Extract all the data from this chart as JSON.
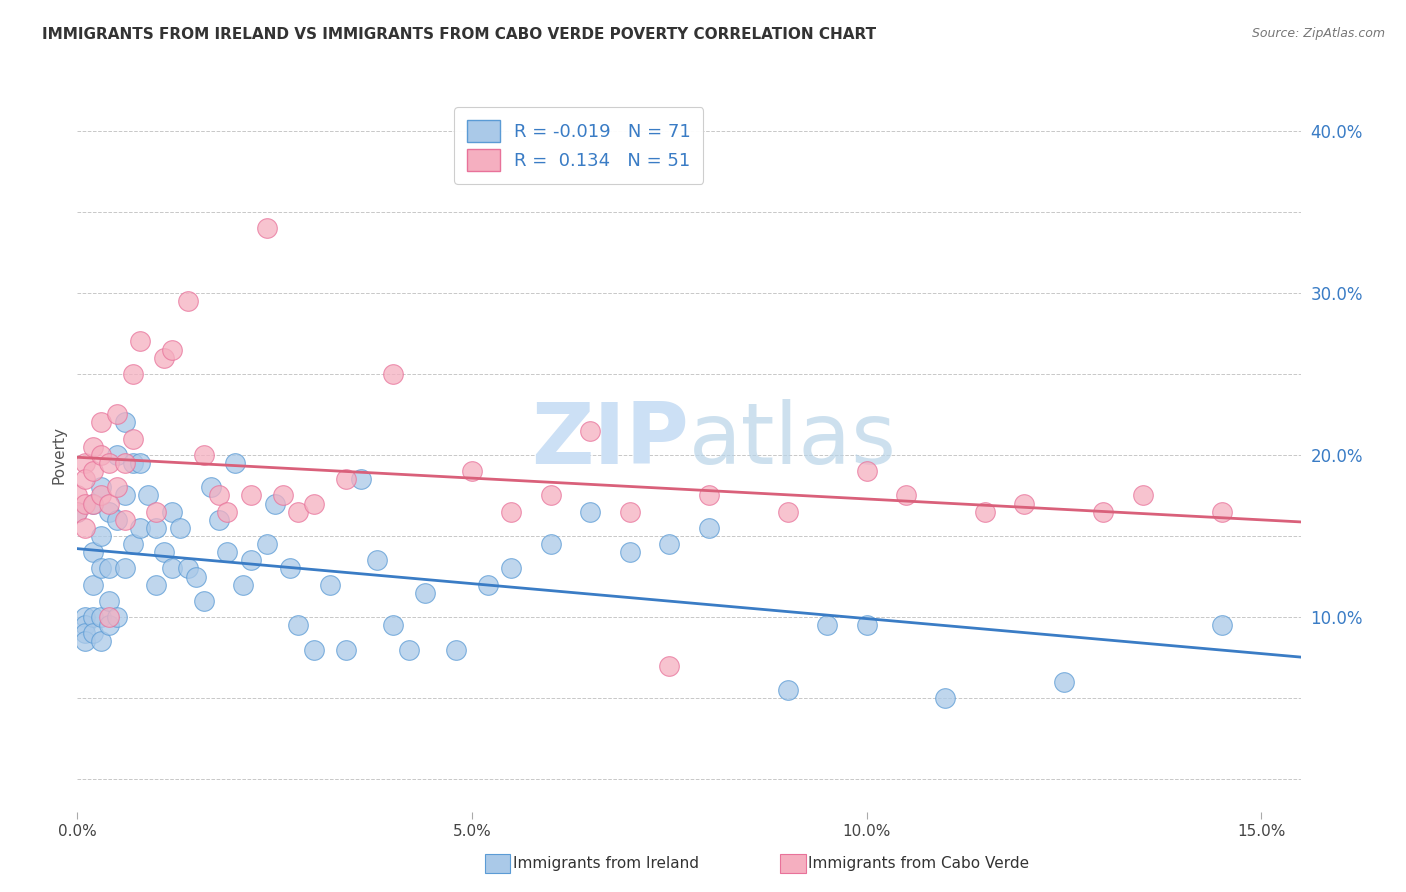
{
  "title": "IMMIGRANTS FROM IRELAND VS IMMIGRANTS FROM CABO VERDE POVERTY CORRELATION CHART",
  "source": "Source: ZipAtlas.com",
  "xlim": [
    0.0,
    0.155
  ],
  "ylim": [
    -0.02,
    0.42
  ],
  "ireland_R": -0.019,
  "ireland_N": 71,
  "caboverde_R": 0.134,
  "caboverde_N": 51,
  "ireland_color": "#aac9e8",
  "caboverde_color": "#f5afc0",
  "ireland_edge_color": "#5b9bd5",
  "caboverde_edge_color": "#e8729a",
  "ireland_line_color": "#3a7cc5",
  "caboverde_line_color": "#d9607a",
  "watermark_color": "#cce0f5",
  "ireland_x": [
    0.0,
    0.001,
    0.001,
    0.001,
    0.001,
    0.002,
    0.002,
    0.002,
    0.002,
    0.002,
    0.003,
    0.003,
    0.003,
    0.003,
    0.003,
    0.004,
    0.004,
    0.004,
    0.004,
    0.005,
    0.005,
    0.005,
    0.006,
    0.006,
    0.006,
    0.007,
    0.007,
    0.008,
    0.008,
    0.009,
    0.01,
    0.01,
    0.011,
    0.012,
    0.012,
    0.013,
    0.014,
    0.015,
    0.016,
    0.017,
    0.018,
    0.019,
    0.02,
    0.021,
    0.022,
    0.024,
    0.025,
    0.027,
    0.028,
    0.03,
    0.032,
    0.034,
    0.036,
    0.038,
    0.04,
    0.042,
    0.044,
    0.048,
    0.052,
    0.055,
    0.06,
    0.065,
    0.07,
    0.075,
    0.08,
    0.09,
    0.095,
    0.1,
    0.11,
    0.125,
    0.145
  ],
  "ireland_y": [
    0.165,
    0.1,
    0.095,
    0.09,
    0.085,
    0.17,
    0.14,
    0.12,
    0.1,
    0.09,
    0.18,
    0.15,
    0.13,
    0.1,
    0.085,
    0.165,
    0.13,
    0.11,
    0.095,
    0.2,
    0.16,
    0.1,
    0.22,
    0.175,
    0.13,
    0.195,
    0.145,
    0.195,
    0.155,
    0.175,
    0.155,
    0.12,
    0.14,
    0.165,
    0.13,
    0.155,
    0.13,
    0.125,
    0.11,
    0.18,
    0.16,
    0.14,
    0.195,
    0.12,
    0.135,
    0.145,
    0.17,
    0.13,
    0.095,
    0.08,
    0.12,
    0.08,
    0.185,
    0.135,
    0.095,
    0.08,
    0.115,
    0.08,
    0.12,
    0.13,
    0.145,
    0.165,
    0.14,
    0.145,
    0.155,
    0.055,
    0.095,
    0.095,
    0.05,
    0.06,
    0.095
  ],
  "caboverde_x": [
    0.0,
    0.0,
    0.001,
    0.001,
    0.001,
    0.001,
    0.002,
    0.002,
    0.002,
    0.003,
    0.003,
    0.003,
    0.004,
    0.004,
    0.004,
    0.005,
    0.005,
    0.006,
    0.006,
    0.007,
    0.007,
    0.008,
    0.01,
    0.011,
    0.012,
    0.014,
    0.016,
    0.018,
    0.019,
    0.022,
    0.024,
    0.026,
    0.028,
    0.03,
    0.034,
    0.04,
    0.05,
    0.055,
    0.06,
    0.065,
    0.07,
    0.075,
    0.08,
    0.09,
    0.1,
    0.105,
    0.115,
    0.12,
    0.13,
    0.135,
    0.145
  ],
  "caboverde_y": [
    0.175,
    0.165,
    0.195,
    0.185,
    0.17,
    0.155,
    0.205,
    0.19,
    0.17,
    0.22,
    0.2,
    0.175,
    0.195,
    0.17,
    0.1,
    0.225,
    0.18,
    0.195,
    0.16,
    0.25,
    0.21,
    0.27,
    0.165,
    0.26,
    0.265,
    0.295,
    0.2,
    0.175,
    0.165,
    0.175,
    0.34,
    0.175,
    0.165,
    0.17,
    0.185,
    0.25,
    0.19,
    0.165,
    0.175,
    0.215,
    0.165,
    0.07,
    0.175,
    0.165,
    0.19,
    0.175,
    0.165,
    0.17,
    0.165,
    0.175,
    0.165
  ],
  "ytick_vals": [
    0.0,
    0.05,
    0.1,
    0.15,
    0.2,
    0.25,
    0.3,
    0.35,
    0.4
  ],
  "ytick_labels": [
    "",
    "",
    "10.0%",
    "",
    "20.0%",
    "",
    "30.0%",
    "",
    "40.0%"
  ],
  "xtick_vals": [
    0.0,
    0.05,
    0.1,
    0.15
  ],
  "xtick_labels": [
    "0.0%",
    "5.0%",
    "10.0%",
    "15.0%"
  ]
}
